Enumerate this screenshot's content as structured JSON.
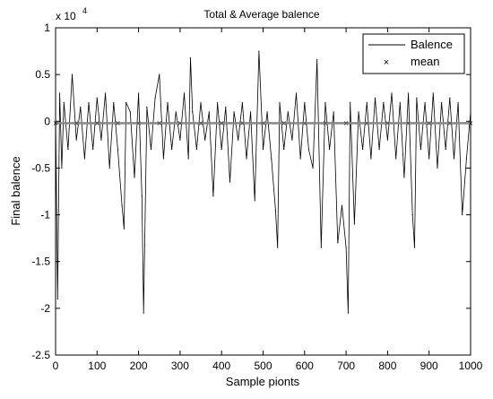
{
  "chart_data": {
    "type": "line",
    "title": "Total & Average balence",
    "xlabel": "Sample pionts",
    "ylabel": "Final balence",
    "exponent_label": "x 10",
    "exponent_power": "4",
    "xlim": [
      0,
      1000
    ],
    "ylim": [
      -2.5,
      1
    ],
    "xticks": [
      "0",
      "100",
      "200",
      "300",
      "400",
      "500",
      "600",
      "700",
      "800",
      "900",
      "1000"
    ],
    "yticks": [
      "1",
      "0.5",
      "0",
      "-0.5",
      "-1",
      "-1.5",
      "-2",
      "-2.5"
    ],
    "legend": {
      "placement": "top-right",
      "entries": [
        {
          "label": "Balence",
          "marker": "line"
        },
        {
          "label": "mean",
          "marker": "x"
        }
      ]
    },
    "grid": false,
    "series": [
      {
        "name": "Balence",
        "color": "#000000",
        "style": "line",
        "x": [
          0,
          5,
          10,
          15,
          20,
          30,
          40,
          50,
          60,
          70,
          80,
          90,
          100,
          110,
          120,
          130,
          140,
          150,
          160,
          165,
          170,
          180,
          190,
          200,
          208,
          212,
          220,
          230,
          240,
          250,
          260,
          270,
          280,
          290,
          300,
          310,
          320,
          325,
          330,
          340,
          350,
          360,
          370,
          380,
          390,
          400,
          410,
          420,
          430,
          440,
          450,
          460,
          470,
          480,
          490,
          500,
          510,
          520,
          530,
          535,
          540,
          550,
          560,
          570,
          580,
          590,
          600,
          610,
          620,
          630,
          640,
          650,
          660,
          670,
          680,
          690,
          700,
          705,
          710,
          720,
          730,
          740,
          750,
          760,
          770,
          780,
          790,
          800,
          810,
          820,
          830,
          840,
          850,
          860,
          865,
          870,
          880,
          890,
          900,
          910,
          920,
          930,
          940,
          950,
          960,
          970,
          980,
          990,
          1000
        ],
        "values": [
          0.1,
          -1.9,
          0.3,
          -0.5,
          0.2,
          -0.3,
          0.5,
          -0.2,
          0.15,
          -0.4,
          0.2,
          -0.3,
          0.25,
          -0.2,
          0.3,
          -0.5,
          0.2,
          -0.3,
          -0.9,
          -1.15,
          0.2,
          0.1,
          -0.6,
          0.3,
          -0.8,
          -2.05,
          0.15,
          -0.3,
          0.25,
          0.5,
          -0.4,
          0.2,
          -0.3,
          0.1,
          -0.2,
          0.3,
          -0.4,
          0.68,
          0.1,
          -0.3,
          0.2,
          -0.2,
          0.1,
          -0.8,
          0.2,
          -0.3,
          0.15,
          -0.65,
          0.1,
          -0.2,
          0.2,
          -0.4,
          0.1,
          -0.85,
          0.75,
          -0.3,
          0.1,
          -0.4,
          -0.95,
          -1.35,
          0.2,
          -0.3,
          0.1,
          -0.2,
          0.3,
          -0.4,
          0.2,
          -0.3,
          -0.5,
          0.66,
          -1.35,
          0.2,
          -0.3,
          0.1,
          -1.3,
          -0.9,
          -1.35,
          -2.05,
          0.2,
          -1.1,
          0.1,
          -0.3,
          0.2,
          -0.4,
          0.25,
          -0.3,
          0.2,
          -0.2,
          0.3,
          -0.4,
          0.2,
          -0.6,
          0.3,
          -1.0,
          -1.35,
          0.25,
          -0.3,
          0.2,
          -0.4,
          0.3,
          -0.5,
          0.2,
          -0.3,
          0.25,
          -0.4,
          0.2,
          -1.0,
          -0.4,
          0.1
        ]
      },
      {
        "name": "mean",
        "color": "#000000",
        "style": "x",
        "x": [
          0,
          50,
          100,
          150,
          200,
          250,
          300,
          350,
          400,
          450,
          500,
          550,
          600,
          650,
          700,
          750,
          800,
          850,
          900,
          950,
          1000
        ],
        "values": [
          -0.02,
          -0.02,
          -0.02,
          -0.02,
          -0.02,
          -0.02,
          -0.02,
          -0.02,
          -0.02,
          -0.02,
          -0.02,
          -0.02,
          -0.02,
          -0.02,
          -0.02,
          -0.02,
          -0.02,
          -0.02,
          -0.02,
          -0.02,
          -0.02
        ]
      }
    ]
  }
}
